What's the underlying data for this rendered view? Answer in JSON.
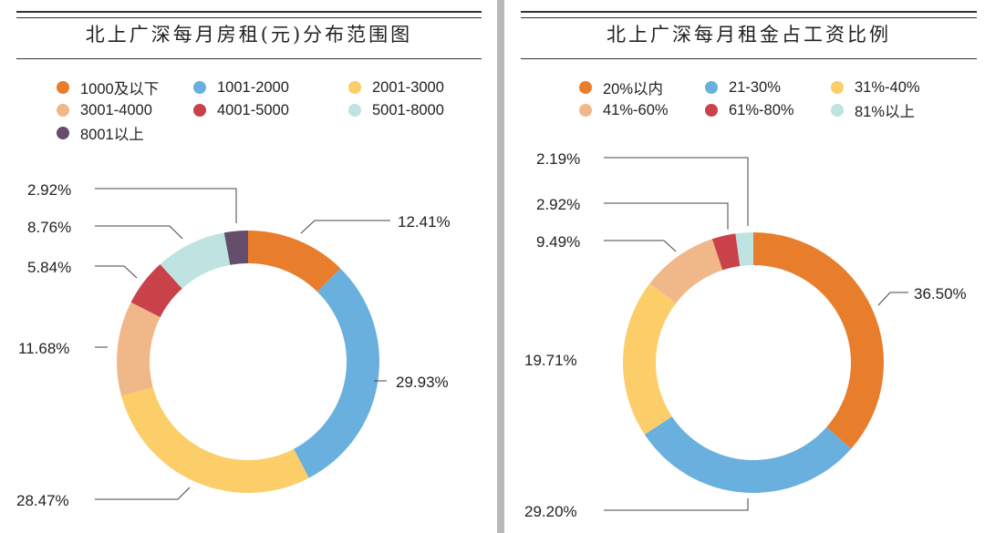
{
  "chart_data": [
    {
      "type": "pie",
      "variant": "donut",
      "title": "北上广深每月房租(元)分布范围图",
      "categories": [
        "1000及以下",
        "1001-2000",
        "2001-3000",
        "3001-4000",
        "4001-5000",
        "5001-8000",
        "8001以上"
      ],
      "values": [
        12.41,
        29.93,
        28.47,
        11.68,
        5.84,
        8.76,
        2.92
      ],
      "labels": [
        "12.41%",
        "29.93%",
        "28.47%",
        "11.68%",
        "5.84%",
        "8.76%",
        "2.92%"
      ],
      "colors": [
        "#E87D2C",
        "#6AB0DE",
        "#FBCE6A",
        "#F0B888",
        "#C9424A",
        "#BEE3E0",
        "#644E6B"
      ],
      "legend_position": "top"
    },
    {
      "type": "pie",
      "variant": "donut",
      "title": "北上广深每月租金占工资比例",
      "categories": [
        "20%以内",
        "21-30%",
        "31%-40%",
        "41%-60%",
        "61%-80%",
        "81%以上"
      ],
      "values": [
        36.5,
        29.2,
        19.71,
        9.49,
        2.92,
        2.19
      ],
      "labels": [
        "36.50%",
        "29.20%",
        "19.71%",
        "9.49%",
        "2.92%",
        "2.19%"
      ],
      "colors": [
        "#E87D2C",
        "#6AB0DE",
        "#FBCE6A",
        "#F0B888",
        "#C9424A",
        "#BEE3E0"
      ],
      "legend_position": "top"
    }
  ],
  "left": {
    "title": "北上广深每月房租(元)分布范围图",
    "legend": [
      {
        "label": "1000及以下",
        "color": "#E87D2C"
      },
      {
        "label": "1001-2000",
        "color": "#6AB0DE"
      },
      {
        "label": "2001-3000",
        "color": "#FBCE6A"
      },
      {
        "label": "3001-4000",
        "color": "#F0B888"
      },
      {
        "label": "4001-5000",
        "color": "#C9424A"
      },
      {
        "label": "5001-8000",
        "color": "#BEE3E0"
      },
      {
        "label": "8001以上",
        "color": "#644E6B"
      }
    ]
  },
  "right": {
    "title": "北上广深每月租金占工资比例",
    "legend": [
      {
        "label": "20%以内",
        "color": "#E87D2C"
      },
      {
        "label": "21-30%",
        "color": "#6AB0DE"
      },
      {
        "label": "31%-40%",
        "color": "#FBCE6A"
      },
      {
        "label": "41%-60%",
        "color": "#F0B888"
      },
      {
        "label": "61%-80%",
        "color": "#C9424A"
      },
      {
        "label": "81%以上",
        "color": "#BEE3E0"
      }
    ]
  }
}
